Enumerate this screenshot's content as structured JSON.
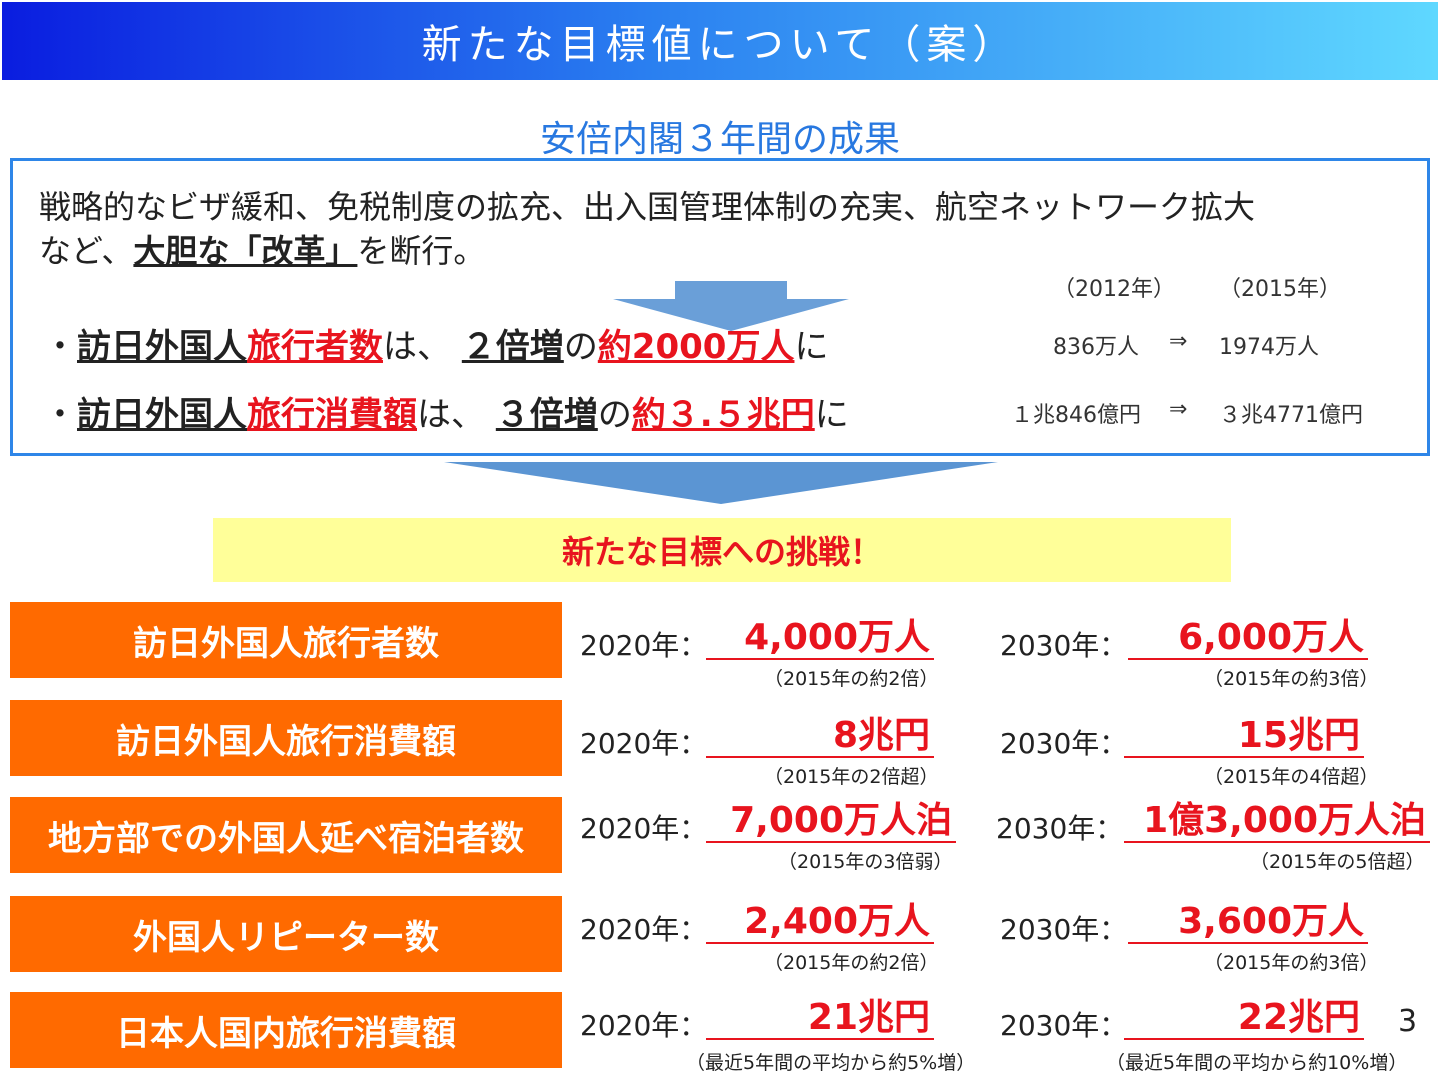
{
  "title": "新たな目標値について（案）",
  "subtitle": "安倍内閣３年間の成果",
  "achievements": {
    "text_line1": "戦略的なビザ緩和、免税制度の拡充、出入国管理体制の充実、航空ネットワーク拡大",
    "text_line2_prefix": "など、",
    "text_line2_bold": "大胆な「改革」",
    "text_line2_suffix": "を断行。",
    "bullet1": {
      "dot": "・",
      "p1": "訪日外国人",
      "p2": "旅行者数",
      "p3": "は、",
      "p4": "２倍増",
      "p5": "の",
      "p6": "約2000万人",
      "p7": "に"
    },
    "bullet2": {
      "dot": "・",
      "p1": "訪日外国人",
      "p2": "旅行消費額",
      "p3": "は、",
      "p4": "３倍増",
      "p5": "の",
      "p6": "約３.５兆円",
      "p7": "に"
    },
    "year_a": "（2012年）",
    "year_b": "（2015年）",
    "stat1_a": "836万人",
    "stat1_arrow": "⇒",
    "stat1_b": "1974万人",
    "stat2_a": "１兆846億円",
    "stat2_arrow": "⇒",
    "stat2_b": "３兆4771億円"
  },
  "challenge": "新たな目標への挑戦！",
  "targets": [
    {
      "label": "訪日外国人旅行者数",
      "y2020": "2020年：",
      "v2020": "4,000万人",
      "n2020": "（2015年の約2倍）",
      "y2030": "2030年：",
      "v2030": "6,000万人",
      "n2030": "（2015年の約3倍）"
    },
    {
      "label": "訪日外国人旅行消費額",
      "y2020": "2020年：",
      "v2020": "8兆円",
      "n2020": "（2015年の2倍超）",
      "y2030": "2030年：",
      "v2030": "15兆円",
      "n2030": "（2015年の4倍超）"
    },
    {
      "label": "地方部での外国人延べ宿泊者数",
      "y2020": "2020年：",
      "v2020": "7,000万人泊",
      "n2020": "（2015年の3倍弱）",
      "y2030": "2030年：",
      "v2030": "1億3,000万人泊",
      "n2030": "（2015年の5倍超）"
    },
    {
      "label": "外国人リピーター数",
      "y2020": "2020年：",
      "v2020": "2,400万人",
      "n2020": "（2015年の約2倍）",
      "y2030": "2030年：",
      "v2030": "3,600万人",
      "n2030": "（2015年の約3倍）"
    },
    {
      "label": "日本人国内旅行消費額",
      "y2020": "2020年：",
      "v2020": "21兆円",
      "n2020": "（最近5年間の平均から約5%増）",
      "y2030": "2030年：",
      "v2030": "22兆円",
      "n2030": "（最近5年間の平均から約10%増）"
    }
  ],
  "page_number": "3",
  "colors": {
    "accent_blue": "#2e86e8",
    "accent_red": "#e8141e",
    "label_orange": "#ff6a00",
    "challenge_bg": "#ffff99"
  }
}
